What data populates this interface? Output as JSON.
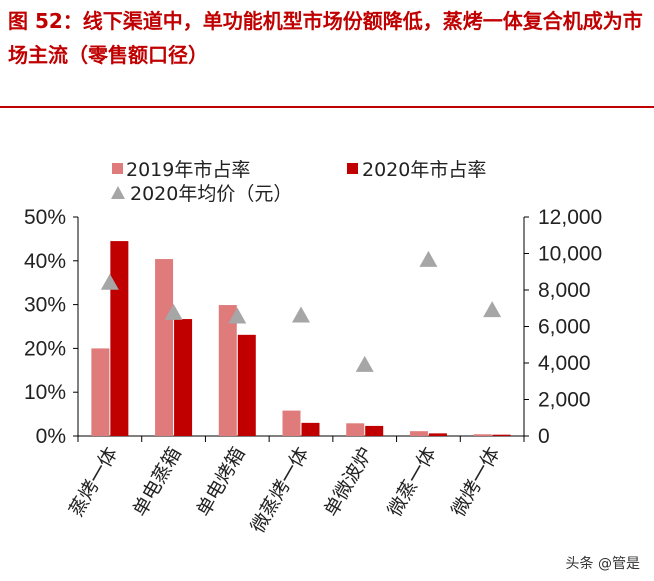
{
  "title": "图 52：线下渠道中，单功能机型市场份额降低，蒸烤一体复合机成为市场主流（零售额口径）",
  "watermark": "头条 @管是",
  "chart_data": {
    "type": "bar",
    "categories": [
      "蒸烤一体",
      "单电蒸箱",
      "单电烤箱",
      "微蒸烤一体",
      "单微波炉",
      "微蒸一体",
      "微烤一体"
    ],
    "series": [
      {
        "name": "2019年市占率",
        "type": "bar",
        "axis": "left",
        "color": "#e07b7b",
        "values": [
          20,
          40.4,
          29.9,
          5.8,
          2.9,
          1.1,
          0.4
        ]
      },
      {
        "name": "2020年市占率",
        "type": "bar",
        "axis": "left",
        "color": "#c00000",
        "values": [
          44.5,
          26.7,
          23.1,
          3.0,
          2.3,
          0.6,
          0.3
        ]
      },
      {
        "name": "2020年均价（元）",
        "type": "scatter",
        "marker": "triangle",
        "axis": "right",
        "color": "#a6a6a6",
        "values": [
          8400,
          6750,
          6550,
          6600,
          3900,
          9650,
          6900
        ]
      }
    ],
    "y_left": {
      "range": [
        0,
        50
      ],
      "ticks": [
        "0%",
        "10%",
        "20%",
        "30%",
        "40%",
        "50%"
      ]
    },
    "y_right": {
      "range": [
        0,
        12000
      ],
      "ticks": [
        "0",
        "2,000",
        "4,000",
        "6,000",
        "8,000",
        "10,000",
        "12,000"
      ]
    },
    "legend": "top"
  }
}
